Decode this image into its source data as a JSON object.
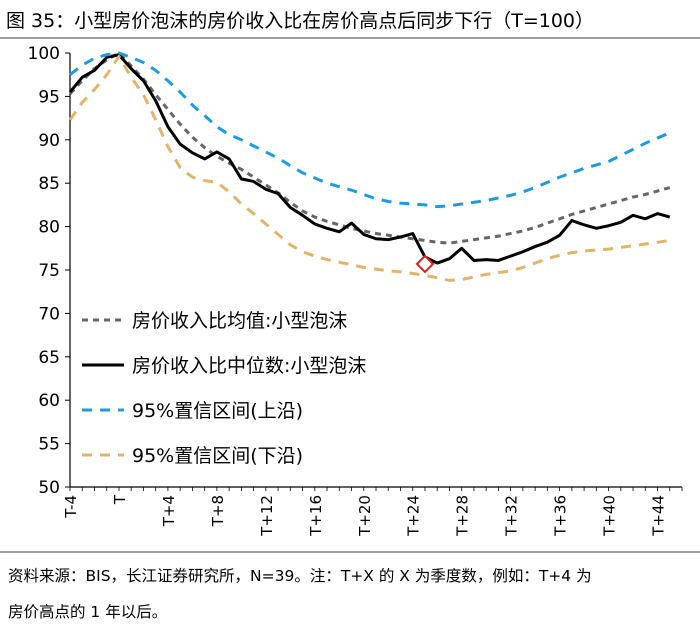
{
  "figure": {
    "title": "图 35：小型房价泡沫的房价收入比在房价高点后同步下行（T=100）",
    "note_line1": "资料来源：BIS，长江证券研究所，N=39。注：T+X 的 X 为季度数，例如：T+4 为",
    "note_line2": "房价高点的 1 年以后。"
  },
  "chart_data": {
    "type": "line",
    "title": "小型房价泡沫的房价收入比在房价高点后同步下行（T=100）",
    "xlabel": "",
    "ylabel": "",
    "xlim": [
      -4,
      46
    ],
    "ylim": [
      50,
      100
    ],
    "yticks": [
      50,
      55,
      60,
      65,
      70,
      75,
      80,
      85,
      90,
      95,
      100
    ],
    "xticks": [
      {
        "x": -4,
        "label": "T-4"
      },
      {
        "x": 0,
        "label": "T"
      },
      {
        "x": 4,
        "label": "T+4"
      },
      {
        "x": 8,
        "label": "T+8"
      },
      {
        "x": 12,
        "label": "T+12"
      },
      {
        "x": 16,
        "label": "T+16"
      },
      {
        "x": 20,
        "label": "T+20"
      },
      {
        "x": 24,
        "label": "T+24"
      },
      {
        "x": 28,
        "label": "T+28"
      },
      {
        "x": 32,
        "label": "T+32"
      },
      {
        "x": 36,
        "label": "T+36"
      },
      {
        "x": 40,
        "label": "T+40"
      },
      {
        "x": 44,
        "label": "T+44"
      }
    ],
    "x": [
      -4,
      -3,
      -2,
      -1,
      0,
      1,
      2,
      3,
      4,
      5,
      6,
      7,
      8,
      9,
      10,
      11,
      12,
      13,
      14,
      15,
      16,
      17,
      18,
      19,
      20,
      21,
      22,
      23,
      24,
      25,
      26,
      27,
      28,
      29,
      30,
      31,
      32,
      33,
      34,
      35,
      36,
      37,
      38,
      39,
      40,
      41,
      42,
      43,
      44,
      45
    ],
    "grid": false,
    "legend_position": "left-center",
    "series": [
      {
        "name": "房价收入比均值:小型泡沫",
        "color": "#666666",
        "dash": "dashed",
        "values": [
          95.3,
          96.8,
          98.2,
          99.2,
          100,
          98.5,
          97,
          95.2,
          93.5,
          91.8,
          90.3,
          89.1,
          88.1,
          87.3,
          86.6,
          85.7,
          84.8,
          83.9,
          82.8,
          81.8,
          81.1,
          80.6,
          80.2,
          79.8,
          79.5,
          79.2,
          79.0,
          78.8,
          78.6,
          78.4,
          78.2,
          78.1,
          78.3,
          78.5,
          78.7,
          78.9,
          79.2,
          79.5,
          79.9,
          80.4,
          80.9,
          81.4,
          81.8,
          82.2,
          82.6,
          83.0,
          83.4,
          83.7,
          84.1,
          84.5
        ]
      },
      {
        "name": "房价收入比中位数:小型泡沫",
        "color": "#000000",
        "dash": "solid",
        "values": [
          95.5,
          97.2,
          98,
          99.5,
          99.8,
          98.2,
          96.8,
          94.5,
          91.5,
          89.5,
          88.5,
          87.8,
          88.6,
          87.8,
          85.5,
          85.2,
          84.3,
          83.8,
          82.2,
          81.3,
          80.3,
          79.8,
          79.4,
          80.4,
          79.1,
          78.6,
          78.5,
          78.8,
          79.2,
          76.5,
          75.8,
          76.3,
          77.5,
          76.1,
          76.2,
          76.1,
          76.6,
          77.1,
          77.7,
          78.2,
          79.0,
          80.7,
          80.2,
          79.8,
          80.1,
          80.5,
          81.3,
          80.9,
          81.5,
          81.1
        ]
      },
      {
        "name": "95%置信区间(上沿)",
        "color": "#1f9ae0",
        "dash": "dashed",
        "values": [
          97.5,
          98.6,
          99.4,
          99.8,
          100,
          99.5,
          98.9,
          98.0,
          96.8,
          95.5,
          94.0,
          92.8,
          91.5,
          90.6,
          90.0,
          89.3,
          88.6,
          87.9,
          87.0,
          86.2,
          85.6,
          85.0,
          84.6,
          84.2,
          83.7,
          83.2,
          82.9,
          82.7,
          82.6,
          82.5,
          82.3,
          82.4,
          82.6,
          82.8,
          83.0,
          83.3,
          83.6,
          84.0,
          84.5,
          85.1,
          85.7,
          86.2,
          86.7,
          87.1,
          87.5,
          88.2,
          88.9,
          89.6,
          90.2,
          90.8
        ]
      },
      {
        "name": "95%置信区间(下沿)",
        "color": "#e0b46b",
        "dash": "dashed",
        "values": [
          92.3,
          94.3,
          95.8,
          97.5,
          99.6,
          97.2,
          95.2,
          92.3,
          89.2,
          86.8,
          85.7,
          85.3,
          85.1,
          84.0,
          82.6,
          81.5,
          80.3,
          79.1,
          77.9,
          77.1,
          76.6,
          76.2,
          75.9,
          75.6,
          75.3,
          75.1,
          74.9,
          74.8,
          74.6,
          74.4,
          74.1,
          73.8,
          73.9,
          74.2,
          74.5,
          74.7,
          74.9,
          75.3,
          75.8,
          76.3,
          76.7,
          77.0,
          77.2,
          77.3,
          77.4,
          77.6,
          77.8,
          78.0,
          78.2,
          78.4
        ]
      }
    ],
    "marker": {
      "x": 25,
      "y": 75.7,
      "shape": "diamond",
      "color": "#d42020"
    }
  }
}
